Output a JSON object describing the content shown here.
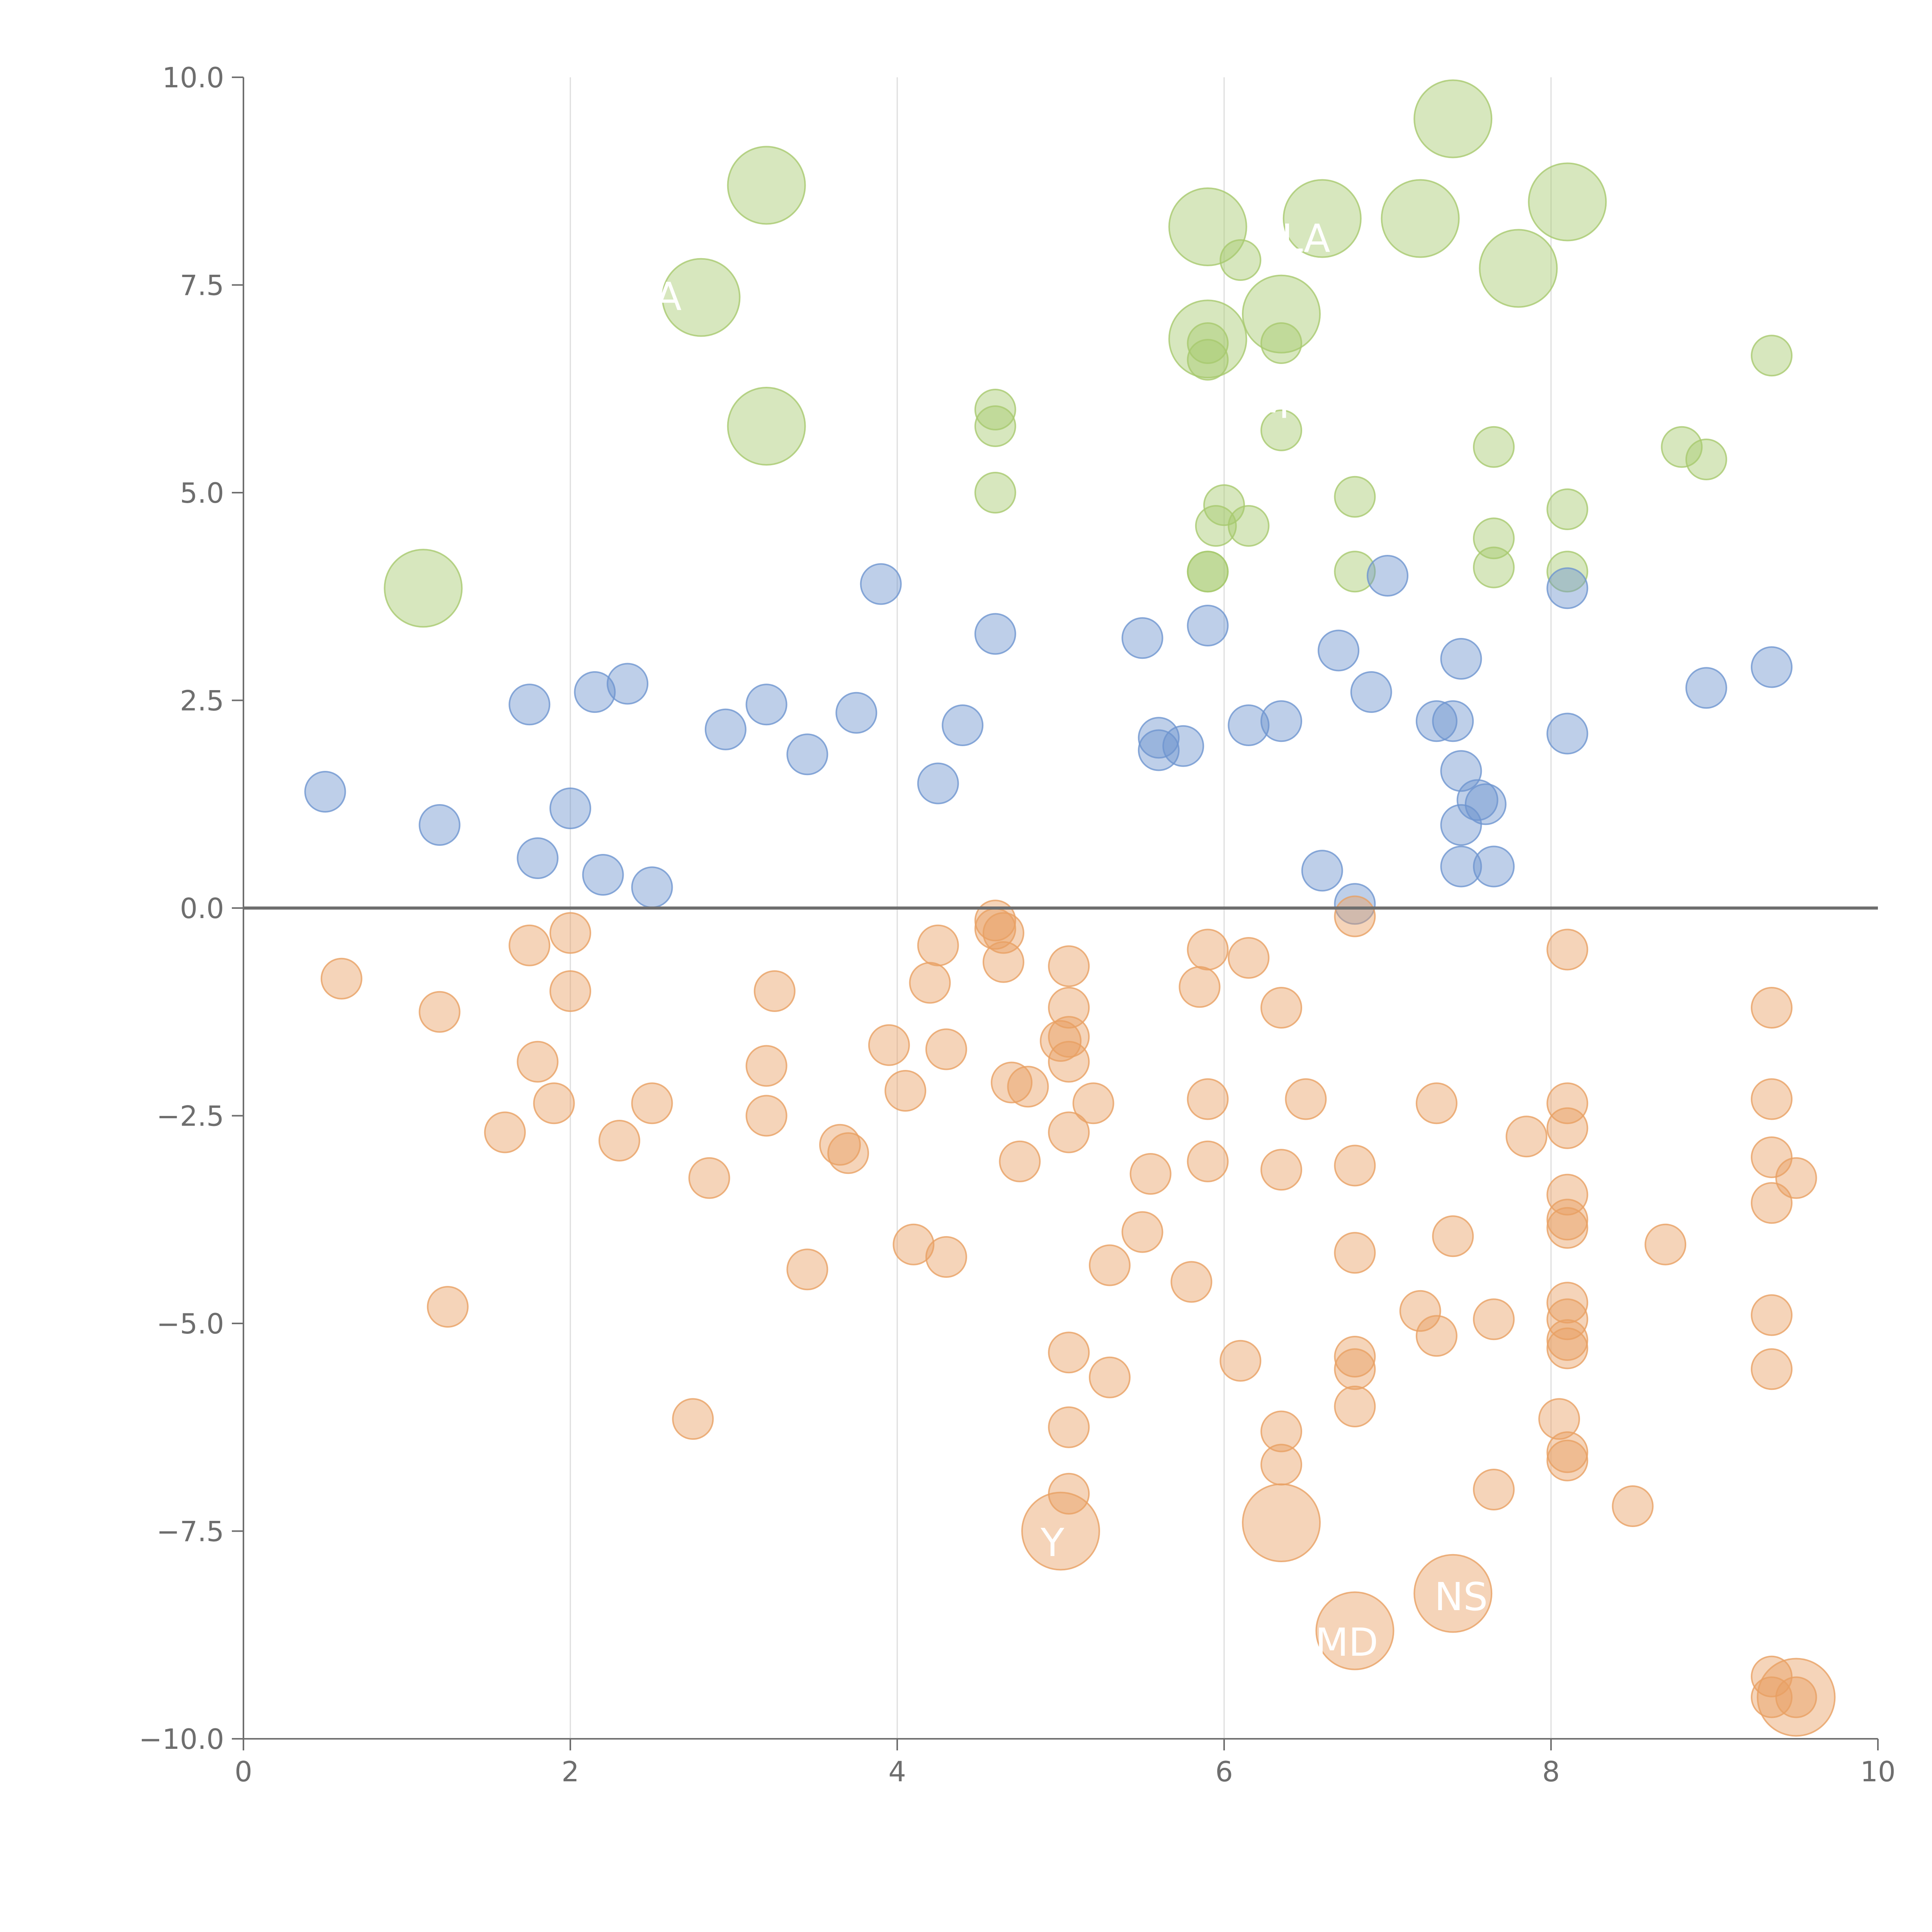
{
  "chart_data": {
    "type": "scatter",
    "title": "",
    "xlabel": "",
    "ylabel": "",
    "xlim": [
      0,
      10
    ],
    "ylim": [
      -10,
      10
    ],
    "x_ticks": [
      "0",
      "2",
      "4",
      "6",
      "8",
      "10"
    ],
    "y_ticks": [
      "10.0",
      "7.5",
      "5.0",
      "2.5",
      "0.0",
      "−2.5",
      "−5.0",
      "−7.5",
      "−10.0"
    ],
    "grid": "vertical",
    "legend": "none",
    "colors": {
      "green": "#a7c96e",
      "blue": "#6e95cf",
      "orange": "#e8a063",
      "axis": "#6e6e6e",
      "zero_line": "#6e6e6e",
      "grid": "#dddddd",
      "label": "#ffffff"
    },
    "series": [
      {
        "name": "green",
        "color": "#a7c96e",
        "points": [
          [
            3.2,
            8.7,
            1
          ],
          [
            7.4,
            9.5,
            1
          ],
          [
            5.9,
            8.2,
            1
          ],
          [
            6.6,
            8.3,
            1
          ],
          [
            7.2,
            8.3,
            1
          ],
          [
            8.1,
            8.5,
            1
          ],
          [
            7.8,
            7.7,
            1
          ],
          [
            2.8,
            7.35,
            1
          ],
          [
            6.35,
            7.15,
            1
          ],
          [
            5.9,
            6.85,
            1
          ],
          [
            3.2,
            5.8,
            1
          ],
          [
            1.1,
            3.85,
            1
          ],
          [
            6.1,
            7.8,
            0
          ],
          [
            5.9,
            6.8,
            0
          ],
          [
            6.35,
            6.8,
            0
          ],
          [
            5.9,
            6.6,
            0
          ],
          [
            9.35,
            6.65,
            0
          ],
          [
            4.6,
            6.0,
            0
          ],
          [
            4.6,
            5.8,
            0
          ],
          [
            6.35,
            5.75,
            0
          ],
          [
            7.65,
            5.55,
            0
          ],
          [
            8.8,
            5.55,
            0
          ],
          [
            8.95,
            5.4,
            0
          ],
          [
            4.6,
            5.0,
            0
          ],
          [
            6.8,
            4.95,
            0
          ],
          [
            6.0,
            4.85,
            0
          ],
          [
            8.1,
            4.8,
            0
          ],
          [
            5.95,
            4.6,
            0
          ],
          [
            6.15,
            4.6,
            0
          ],
          [
            7.65,
            4.45,
            0
          ],
          [
            7.65,
            4.1,
            0
          ],
          [
            5.9,
            4.05,
            0
          ],
          [
            5.9,
            4.05,
            0
          ],
          [
            6.8,
            4.05,
            0
          ],
          [
            8.1,
            4.05,
            0
          ]
        ]
      },
      {
        "name": "blue",
        "color": "#6e95cf",
        "points": [
          [
            0.5,
            1.4,
            0
          ],
          [
            1.2,
            1.0,
            0
          ],
          [
            1.75,
            2.45,
            0
          ],
          [
            1.8,
            0.6,
            0
          ],
          [
            2.0,
            1.2,
            0
          ],
          [
            2.15,
            2.6,
            0
          ],
          [
            2.2,
            0.4,
            0
          ],
          [
            2.35,
            2.7,
            0
          ],
          [
            2.5,
            0.25,
            0
          ],
          [
            2.95,
            2.15,
            0
          ],
          [
            3.2,
            2.45,
            0
          ],
          [
            3.45,
            1.85,
            0
          ],
          [
            3.75,
            2.35,
            0
          ],
          [
            3.9,
            3.9,
            0
          ],
          [
            4.25,
            1.5,
            0
          ],
          [
            4.4,
            2.2,
            0
          ],
          [
            4.6,
            3.3,
            0
          ],
          [
            5.5,
            3.25,
            0
          ],
          [
            5.6,
            2.05,
            0
          ],
          [
            5.6,
            1.9,
            0
          ],
          [
            5.75,
            1.95,
            0
          ],
          [
            5.9,
            3.4,
            0
          ],
          [
            6.15,
            2.2,
            0
          ],
          [
            6.35,
            2.25,
            0
          ],
          [
            6.6,
            0.45,
            0
          ],
          [
            6.7,
            3.1,
            0
          ],
          [
            6.8,
            0.05,
            0
          ],
          [
            6.9,
            2.6,
            0
          ],
          [
            7.0,
            4.0,
            0
          ],
          [
            7.3,
            2.25,
            0
          ],
          [
            7.4,
            2.25,
            0
          ],
          [
            7.45,
            3.0,
            0
          ],
          [
            7.45,
            1.65,
            0
          ],
          [
            7.45,
            1.0,
            0
          ],
          [
            7.45,
            0.5,
            0
          ],
          [
            7.55,
            1.3,
            0
          ],
          [
            7.6,
            1.25,
            0
          ],
          [
            7.65,
            0.5,
            0
          ],
          [
            8.1,
            3.85,
            0
          ],
          [
            8.1,
            2.1,
            0
          ],
          [
            8.95,
            2.65,
            0
          ],
          [
            9.35,
            2.9,
            0
          ]
        ]
      },
      {
        "name": "orange",
        "color": "#e8a063",
        "points": [
          [
            0.6,
            -0.85,
            0
          ],
          [
            1.2,
            -1.25,
            0
          ],
          [
            1.25,
            -4.8,
            0
          ],
          [
            1.6,
            -2.7,
            0
          ],
          [
            1.75,
            -0.45,
            0
          ],
          [
            1.8,
            -1.85,
            0
          ],
          [
            1.9,
            -2.35,
            0
          ],
          [
            2.0,
            -0.3,
            0
          ],
          [
            2.0,
            -1.0,
            0
          ],
          [
            2.3,
            -2.8,
            0
          ],
          [
            2.5,
            -2.35,
            0
          ],
          [
            2.75,
            -6.15,
            0
          ],
          [
            2.85,
            -3.25,
            0
          ],
          [
            3.2,
            -1.9,
            0
          ],
          [
            3.2,
            -2.5,
            0
          ],
          [
            3.25,
            -1.0,
            0
          ],
          [
            3.45,
            -4.35,
            0
          ],
          [
            3.65,
            -2.85,
            0
          ],
          [
            3.7,
            -2.95,
            0
          ],
          [
            3.95,
            -1.65,
            0
          ],
          [
            4.05,
            -2.2,
            0
          ],
          [
            4.1,
            -4.05,
            0
          ],
          [
            4.2,
            -0.9,
            0
          ],
          [
            4.25,
            -0.45,
            0
          ],
          [
            4.3,
            -1.7,
            0
          ],
          [
            4.3,
            -4.2,
            0
          ],
          [
            4.6,
            -0.15,
            0
          ],
          [
            4.6,
            -0.25,
            0
          ],
          [
            4.65,
            -0.3,
            0
          ],
          [
            4.65,
            -0.65,
            0
          ],
          [
            4.7,
            -2.1,
            0
          ],
          [
            4.75,
            -3.05,
            0
          ],
          [
            4.8,
            -2.15,
            0
          ],
          [
            5.0,
            -1.6,
            0
          ],
          [
            5.05,
            -0.7,
            0
          ],
          [
            5.05,
            -1.2,
            0
          ],
          [
            5.05,
            -1.55,
            0
          ],
          [
            5.05,
            -1.85,
            0
          ],
          [
            5.05,
            -2.7,
            0
          ],
          [
            5.05,
            -5.35,
            0
          ],
          [
            5.05,
            -6.25,
            0
          ],
          [
            5.05,
            -7.05,
            0
          ],
          [
            5.2,
            -2.35,
            0
          ],
          [
            5.3,
            -4.3,
            0
          ],
          [
            5.3,
            -5.65,
            0
          ],
          [
            5.5,
            -3.9,
            0
          ],
          [
            5.55,
            -3.2,
            0
          ],
          [
            5.8,
            -4.5,
            0
          ],
          [
            5.85,
            -0.95,
            0
          ],
          [
            5.9,
            -0.5,
            0
          ],
          [
            5.9,
            -2.3,
            0
          ],
          [
            5.9,
            -3.05,
            0
          ],
          [
            6.1,
            -5.45,
            0
          ],
          [
            6.15,
            -0.6,
            0
          ],
          [
            6.35,
            -1.2,
            0
          ],
          [
            6.35,
            -3.15,
            0
          ],
          [
            6.35,
            -6.3,
            0
          ],
          [
            6.35,
            -6.7,
            0
          ],
          [
            6.5,
            -2.3,
            0
          ],
          [
            6.8,
            -0.1,
            0
          ],
          [
            6.8,
            -3.1,
            0
          ],
          [
            6.8,
            -4.15,
            0
          ],
          [
            6.8,
            -5.4,
            0
          ],
          [
            6.8,
            -5.55,
            0
          ],
          [
            6.8,
            -6.0,
            0
          ],
          [
            7.2,
            -4.85,
            0
          ],
          [
            7.3,
            -2.35,
            0
          ],
          [
            7.3,
            -5.15,
            0
          ],
          [
            7.4,
            -3.95,
            0
          ],
          [
            7.65,
            -4.95,
            0
          ],
          [
            7.65,
            -7.0,
            0
          ],
          [
            7.85,
            -2.75,
            0
          ],
          [
            8.05,
            -6.15,
            0
          ],
          [
            8.1,
            -0.5,
            0
          ],
          [
            8.1,
            -2.35,
            0
          ],
          [
            8.1,
            -2.65,
            0
          ],
          [
            8.1,
            -3.45,
            0
          ],
          [
            8.1,
            -3.75,
            0
          ],
          [
            8.1,
            -3.85,
            0
          ],
          [
            8.1,
            -4.75,
            0
          ],
          [
            8.1,
            -4.95,
            0
          ],
          [
            8.1,
            -5.2,
            0
          ],
          [
            8.1,
            -5.3,
            0
          ],
          [
            8.1,
            -6.55,
            0
          ],
          [
            8.1,
            -6.65,
            0
          ],
          [
            8.5,
            -7.2,
            0
          ],
          [
            8.7,
            -4.05,
            0
          ],
          [
            9.35,
            -1.2,
            0
          ],
          [
            9.35,
            -2.3,
            0
          ],
          [
            9.35,
            -3.0,
            0
          ],
          [
            9.35,
            -3.55,
            0
          ],
          [
            9.35,
            -4.9,
            0
          ],
          [
            9.35,
            -5.55,
            0
          ],
          [
            9.35,
            -9.25,
            0
          ],
          [
            9.35,
            -9.5,
            0
          ],
          [
            9.5,
            -3.25,
            0
          ],
          [
            9.5,
            -9.5,
            0
          ],
          [
            5.0,
            -7.5,
            1
          ],
          [
            6.35,
            -7.4,
            1
          ],
          [
            6.8,
            -8.7,
            1
          ],
          [
            7.4,
            -8.25,
            1
          ],
          [
            9.5,
            -9.5,
            1
          ]
        ]
      }
    ],
    "annotations": [
      {
        "text": "Y",
        "x": 4.95,
        "y": -7.8
      },
      {
        "text": "NS",
        "x": 7.45,
        "y": -8.45
      },
      {
        "text": "MD",
        "x": 6.75,
        "y": -9.0
      },
      {
        "text": "A",
        "x": 2.6,
        "y": 7.2
      },
      {
        "text": "LA",
        "x": 6.5,
        "y": 7.9
      },
      {
        "text": "M",
        "x": 6.3,
        "y": 5.9
      }
    ]
  }
}
